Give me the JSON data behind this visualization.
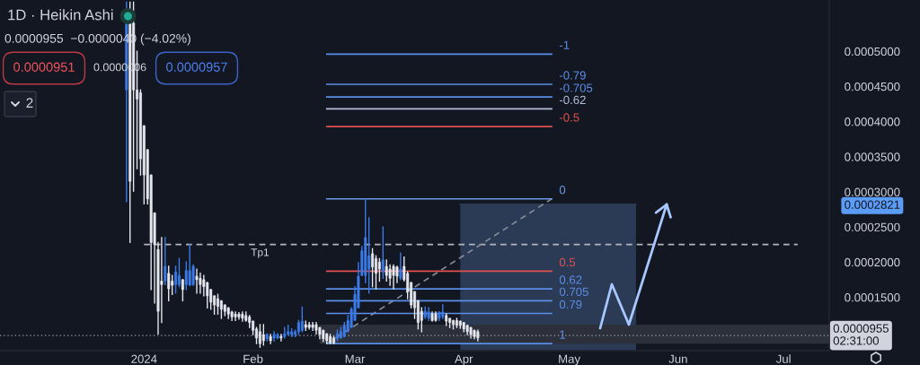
{
  "chart_data": {
    "type": "candlestick",
    "title": "1D · Heikin Ashi",
    "subtitle": "0.0000955  −0.0000040 (−4.02%)",
    "x": [
      "2023-12-27",
      "2023-12-28",
      "2023-12-29",
      "2023-12-30",
      "2023-12-31",
      "2024-01-01",
      "2024-01-02",
      "2024-01-03",
      "2024-01-04",
      "2024-01-05",
      "2024-01-06",
      "2024-01-07",
      "2024-01-08",
      "2024-01-09",
      "2024-01-10",
      "2024-01-11",
      "2024-01-12",
      "2024-01-13",
      "2024-01-14",
      "2024-01-15",
      "2024-01-16",
      "2024-01-17",
      "2024-01-18",
      "2024-01-19",
      "2024-01-20",
      "2024-01-21",
      "2024-01-22",
      "2024-01-23",
      "2024-01-24",
      "2024-01-25",
      "2024-01-26",
      "2024-01-27",
      "2024-01-28",
      "2024-01-29",
      "2024-01-30",
      "2024-01-31",
      "2024-02-01",
      "2024-02-02",
      "2024-02-03",
      "2024-02-04",
      "2024-02-05",
      "2024-02-06",
      "2024-02-07",
      "2024-02-08",
      "2024-02-09",
      "2024-02-10",
      "2024-02-11",
      "2024-02-12",
      "2024-02-13",
      "2024-02-14",
      "2024-02-15",
      "2024-02-16",
      "2024-02-17",
      "2024-02-18",
      "2024-02-19",
      "2024-02-20",
      "2024-02-21",
      "2024-02-22",
      "2024-02-23",
      "2024-02-24",
      "2024-02-25",
      "2024-02-26",
      "2024-02-27",
      "2024-02-28",
      "2024-02-29",
      "2024-03-01",
      "2024-03-02",
      "2024-03-03",
      "2024-03-04",
      "2024-03-05",
      "2024-03-06",
      "2024-03-07",
      "2024-03-08",
      "2024-03-09",
      "2024-03-10",
      "2024-03-11",
      "2024-03-12",
      "2024-03-13",
      "2024-03-14",
      "2024-03-15",
      "2024-03-16",
      "2024-03-17",
      "2024-03-18",
      "2024-03-19",
      "2024-03-20",
      "2024-03-21",
      "2024-03-22",
      "2024-03-23",
      "2024-03-24",
      "2024-03-25",
      "2024-03-26",
      "2024-03-27",
      "2024-03-28",
      "2024-03-29",
      "2024-03-30",
      "2024-03-31",
      "2024-04-01",
      "2024-04-02",
      "2024-04-03",
      "2024-04-04",
      "2024-04-05"
    ],
    "ohlc": [
      [
        0.000445,
        0.00057,
        0.000286,
        0.00056
      ],
      [
        0.00056,
        0.00057,
        0.000228,
        0.000315
      ],
      [
        0.00054,
        0.00057,
        0.000301,
        0.000445
      ],
      [
        0.000445,
        0.0005,
        0.000333,
        0.000432
      ],
      [
        0.000441,
        0.000445,
        0.000324,
        0.000347
      ],
      [
        0.000394,
        0.000394,
        0.000283,
        0.000324
      ],
      [
        0.00036,
        0.00036,
        0.000283,
        0.00029
      ],
      [
        0.000324,
        0.000324,
        0.000161,
        0.000228
      ],
      [
        0.00027,
        0.00027,
        0.000142,
        0.000225
      ],
      [
        0.000218,
        0.000228,
        9.8e-05,
        0.00013
      ],
      [
        0.000173,
        0.000235,
        0.000114,
        0.000168
      ],
      [
        0.000173,
        0.000235,
        0.000168,
        0.000194
      ],
      [
        0.000184,
        0.000194,
        0.000145,
        0.000162
      ],
      [
        0.000173,
        0.000181,
        0.000154,
        0.000167
      ],
      [
        0.000168,
        0.000194,
        0.000156,
        0.000186
      ],
      [
        0.000168,
        0.000205,
        0.000165,
        0.000181
      ],
      [
        0.000175,
        0.000175,
        0.000145,
        0.000161
      ],
      [
        0.000168,
        0.0002,
        0.000161,
        0.000188
      ],
      [
        0.000167,
        0.000225,
        0.000167,
        0.000188
      ],
      [
        0.000168,
        0.000196,
        0.000167,
        0.000194
      ],
      [
        0.00018,
        0.00019,
        0.000156,
        0.000175
      ],
      [
        0.000177,
        0.000184,
        0.000156,
        0.000168
      ],
      [
        0.000175,
        0.000181,
        0.000152,
        0.000165
      ],
      [
        0.000171,
        0.000171,
        0.000135,
        0.000152
      ],
      [
        0.000161,
        0.000161,
        0.000133,
        0.000143
      ],
      [
        0.000152,
        0.000152,
        0.000126,
        0.000139
      ],
      [
        0.000148,
        0.000154,
        0.000126,
        0.000137
      ],
      [
        0.000145,
        0.000145,
        0.00012,
        0.000133
      ],
      [
        0.000139,
        0.000139,
        0.000124,
        0.00013
      ],
      [
        0.000135,
        0.000135,
        0.00012,
        0.000126
      ],
      [
        0.000129,
        0.00013,
        0.000117,
        0.000122
      ],
      [
        0.000126,
        0.000129,
        0.000117,
        0.000122
      ],
      [
        0.000126,
        0.000128,
        0.000119,
        0.000122
      ],
      [
        0.000126,
        0.000129,
        0.000116,
        0.00012
      ],
      [
        0.000124,
        0.000129,
        0.000116,
        0.000117
      ],
      [
        0.000122,
        0.000124,
        0.000107,
        0.000114
      ],
      [
        0.000116,
        0.000116,
        9.7e-05,
        0.000103
      ],
      [
        0.000105,
        0.000107,
        8.4e-05,
        9.2e-05
      ],
      [
        0.000101,
        0.000111,
        7.9e-05,
        8.4e-05
      ],
      [
        9.7e-05,
        0.000111,
        8.2e-05,
        8.8e-05
      ],
      [
        9.1e-05,
        9.8e-05,
        8.8e-05,
        9.7e-05
      ],
      [
        9.4e-05,
        9.7e-05,
        8.4e-05,
        8.8e-05
      ],
      [
        9.2e-05,
        0.000101,
        8.8e-05,
        9.7e-05
      ],
      [
        9.2e-05,
        9.8e-05,
        9.1e-05,
        9.7e-05
      ],
      [
        9.4e-05,
        9.7e-05,
        8.8e-05,
        9.2e-05
      ],
      [
        9.4e-05,
        0.000107,
        9.2e-05,
        9.8e-05
      ],
      [
        9.7e-05,
        0.00011,
        9.7e-05,
        0.000101
      ],
      [
        9.7e-05,
        0.000105,
        9.4e-05,
        0.000101
      ],
      [
        9.7e-05,
        0.000103,
        9.4e-05,
        0.000101
      ],
      [
        0.000101,
        0.000117,
        9.7e-05,
        0.000114
      ],
      [
        0.000103,
        0.000136,
        0.000101,
        0.000116
      ],
      [
        0.000111,
        0.000116,
        0.000103,
        0.000107
      ],
      [
        0.000111,
        0.000114,
        0.000105,
        0.000107
      ],
      [
        0.000111,
        0.000114,
        0.000103,
        0.000107
      ],
      [
        0.000111,
        0.000114,
        9.8e-05,
        0.000103
      ],
      [
        0.000107,
        0.000107,
        9.1e-05,
        9.7e-05
      ],
      [
        0.000103,
        0.000103,
        8.7e-05,
        9.1e-05
      ],
      [
        9.8e-05,
        9.8e-05,
        8.4e-05,
        8.8e-05
      ],
      [
        9.4e-05,
        9.7e-05,
        8.4e-05,
        8.5e-05
      ],
      [
        9.2e-05,
        9.4e-05,
        8.4e-05,
        8.5e-05
      ],
      [
        9.1e-05,
        0.000103,
        8.8e-05,
        9.8e-05
      ],
      [
        9.2e-05,
        0.000107,
        9.2e-05,
        0.000101
      ],
      [
        9.4e-05,
        0.000114,
        9.4e-05,
        0.00011
      ],
      [
        0.000101,
        0.000124,
        0.000101,
        0.000117
      ],
      [
        0.000107,
        0.000135,
        0.000107,
        0.000133
      ],
      [
        0.000117,
        0.000165,
        0.000117,
        0.000154
      ],
      [
        0.000135,
        0.000199,
        0.000135,
        0.00018
      ],
      [
        0.000181,
        0.000222,
        0.000181,
        0.000216
      ],
      [
        0.000181,
        0.00029,
        0.000171,
        0.000235
      ],
      [
        0.00019,
        0.000263,
        0.000156,
        0.000209
      ],
      [
        0.000212,
        0.000219,
        0.000165,
        0.000193
      ],
      [
        0.000205,
        0.000209,
        0.000162,
        0.000184
      ],
      [
        0.0002,
        0.000205,
        0.000173,
        0.00019
      ],
      [
        0.000186,
        0.00025,
        0.000177,
        0.000203
      ],
      [
        0.000194,
        0.000203,
        0.000173,
        0.000181
      ],
      [
        0.00019,
        0.000196,
        0.000167,
        0.000177
      ],
      [
        0.000194,
        0.000196,
        0.000162,
        0.000181
      ],
      [
        0.000193,
        0.000194,
        0.000171,
        0.00018
      ],
      [
        0.000177,
        0.000213,
        0.000175,
        0.00019
      ],
      [
        0.000194,
        0.000207,
        0.000173,
        0.000175
      ],
      [
        0.000184,
        0.000186,
        0.000148,
        0.000158
      ],
      [
        0.000171,
        0.000171,
        0.000135,
        0.000139
      ],
      [
        0.000158,
        0.000158,
        0.00012,
        0.000135
      ],
      [
        0.000145,
        0.000145,
        0.000105,
        0.000114
      ],
      [
        0.00013,
        0.000135,
        0.000101,
        0.000117
      ],
      [
        0.000122,
        0.000136,
        0.00012,
        0.00013
      ],
      [
        0.00012,
        0.000135,
        0.000117,
        0.000129
      ],
      [
        0.000126,
        0.000129,
        0.000116,
        0.000117
      ],
      [
        0.000126,
        0.000129,
        0.000116,
        0.000117
      ],
      [
        0.00012,
        0.000129,
        0.000117,
        0.000129
      ],
      [
        0.000122,
        0.000139,
        0.00012,
        0.000129
      ],
      [
        0.000124,
        0.000126,
        0.00011,
        0.000116
      ],
      [
        0.00012,
        0.00012,
        0.000107,
        0.000114
      ],
      [
        0.000117,
        0.000117,
        0.000105,
        0.000111
      ],
      [
        0.000117,
        0.00012,
        0.000107,
        0.00011
      ],
      [
        0.000116,
        0.000116,
        0.000106,
        0.00011
      ],
      [
        0.000114,
        0.000114,
        0.000101,
        0.000105
      ],
      [
        0.00011,
        0.00011,
        9.7e-05,
        0.000101
      ],
      [
        0.000107,
        0.000107,
        9.2e-05,
        9.7e-05
      ],
      [
        0.000103,
        0.000103,
        9.1e-05,
        9.4e-05
      ],
      [
        0.000101,
        0.000103,
        8.8e-05,
        9.2e-05
      ]
    ],
    "colors": [
      "#3b7be8",
      "#e6e8ee",
      "#e6e8ee",
      "#e6e8ee",
      "#e6e8ee",
      "#e6e8ee",
      "#e6e8ee",
      "#e6e8ee",
      "#e6e8ee",
      "#e6e8ee",
      "#e6e8ee",
      "#3b7be8",
      "#e6e8ee",
      "#e6e8ee",
      "#3b7be8",
      "#3b7be8",
      "#e6e8ee",
      "#3b7be8",
      "#3b7be8",
      "#3b7be8",
      "#e6e8ee",
      "#e6e8ee",
      "#e6e8ee",
      "#e6e8ee",
      "#e6e8ee",
      "#e6e8ee",
      "#e6e8ee",
      "#e6e8ee",
      "#e6e8ee",
      "#e6e8ee",
      "#e6e8ee",
      "#e6e8ee",
      "#e6e8ee",
      "#e6e8ee",
      "#e6e8ee",
      "#e6e8ee",
      "#e6e8ee",
      "#e6e8ee",
      "#e6e8ee",
      "#e6e8ee",
      "#3b7be8",
      "#e6e8ee",
      "#3b7be8",
      "#3b7be8",
      "#e6e8ee",
      "#3b7be8",
      "#3b7be8",
      "#3b7be8",
      "#3b7be8",
      "#3b7be8",
      "#3b7be8",
      "#e6e8ee",
      "#e6e8ee",
      "#e6e8ee",
      "#e6e8ee",
      "#e6e8ee",
      "#e6e8ee",
      "#e6e8ee",
      "#e6e8ee",
      "#e6e8ee",
      "#3b7be8",
      "#3b7be8",
      "#3b7be8",
      "#3b7be8",
      "#3b7be8",
      "#3b7be8",
      "#3b7be8",
      "#3b7be8",
      "#3b7be8",
      "#3b7be8",
      "#e6e8ee",
      "#e6e8ee",
      "#e6e8ee",
      "#3b7be8",
      "#e6e8ee",
      "#e6e8ee",
      "#e6e8ee",
      "#e6e8ee",
      "#3b7be8",
      "#e6e8ee",
      "#e6e8ee",
      "#e6e8ee",
      "#e6e8ee",
      "#e6e8ee",
      "#e6e8ee",
      "#3b7be8",
      "#3b7be8",
      "#e6e8ee",
      "#e6e8ee",
      "#3b7be8",
      "#3b7be8",
      "#e6e8ee",
      "#e6e8ee",
      "#e6e8ee",
      "#e6e8ee",
      "#e6e8ee",
      "#e6e8ee",
      "#e6e8ee",
      "#e6e8ee",
      "#e6e8ee",
      "#e6e8ee"
    ],
    "series": [
      {
        "type": "line",
        "x": [
          "2024-03-31",
          "2024-05-20"
        ],
        "values": [
          0.0002821,
          0.0002821
        ],
        "lower": [
          7.5e-05,
          7.5e-05
        ],
        "upper": [
          0.0002821,
          0.0002821
        ],
        "color": "#2b3a55"
      },
      {
        "type": "line",
        "x": [
          "2024-02-20",
          "2024-07-14"
        ],
        "values": [
          0.00011,
          0.00011
        ],
        "lower": [
          8.4e-05,
          8.4e-05
        ],
        "upper": [
          0.00011,
          0.00011
        ],
        "color": "#2c303b"
      },
      {
        "type": "line",
        "x": [
          "2024-01-01",
          "2024-07-05"
        ],
        "values": [
          0.000225,
          0.000225
        ],
        "color": "#b2b5be",
        "line_style": "dashed"
      },
      {
        "type": "line",
        "x": [
          "2024-02-22",
          "2024-04-26"
        ],
        "values": [
          8.4e-05,
          0.00029
        ],
        "color": "#868b97",
        "line_style": "dashed"
      },
      {
        "type": "line",
        "name": "-1",
        "x": [
          "2024-02-22",
          "2024-04-26"
        ],
        "values": [
          0.000496,
          0.000496
        ],
        "color": "#5b8ee6"
      },
      {
        "type": "line",
        "name": "-0.79",
        "x": [
          "2024-02-22",
          "2024-04-26"
        ],
        "values": [
          0.000453,
          0.000453
        ],
        "color": "#5b8ee6"
      },
      {
        "type": "line",
        "name": "-0.705",
        "x": [
          "2024-02-22",
          "2024-04-26"
        ],
        "values": [
          0.000435,
          0.000435
        ],
        "color": "#5b8ee6"
      },
      {
        "type": "line",
        "name": "-0.62",
        "x": [
          "2024-02-22",
          "2024-04-26"
        ],
        "values": [
          0.000418,
          0.000418
        ],
        "color": "#b4bddb"
      },
      {
        "type": "line",
        "name": "-0.5",
        "x": [
          "2024-02-22",
          "2024-04-26"
        ],
        "values": [
          0.000393,
          0.000393
        ],
        "color": "#e0514f"
      },
      {
        "type": "line",
        "name": "0",
        "x": [
          "2024-02-22",
          "2024-04-26"
        ],
        "values": [
          0.00029,
          0.00029
        ],
        "color": "#6b9be8"
      },
      {
        "type": "line",
        "name": "0.5",
        "x": [
          "2024-02-22",
          "2024-04-26"
        ],
        "values": [
          0.000187,
          0.000187
        ],
        "color": "#e0514f"
      },
      {
        "type": "line",
        "name": "0.62",
        "x": [
          "2024-02-22",
          "2024-04-26"
        ],
        "values": [
          0.000162,
          0.000162
        ],
        "color": "#5b8ee6"
      },
      {
        "type": "line",
        "name": "0.705",
        "x": [
          "2024-02-22",
          "2024-04-26"
        ],
        "values": [
          0.000145,
          0.000145
        ],
        "color": "#5b8ee6"
      },
      {
        "type": "line",
        "name": "0.79",
        "x": [
          "2024-02-22",
          "2024-04-26"
        ],
        "values": [
          0.000127,
          0.000127
        ],
        "color": "#5b8ee6"
      },
      {
        "type": "line",
        "name": "1",
        "x": [
          "2024-02-22",
          "2024-04-26"
        ],
        "values": [
          8.4e-05,
          8.4e-05
        ],
        "color": "#5b8ee6"
      }
    ],
    "ref_lines": [
      {
        "axis": "y",
        "value": 9.55e-05,
        "label": "0.0000955\n02:31:00",
        "color": "#9598a1",
        "line_style": "dotted"
      }
    ],
    "annotations": [
      "0.0000951",
      "0.0000006",
      "0.0000957",
      "2",
      {
        "text": "Tp1",
        "x": "2024-02-03",
        "y": 0.000225
      }
    ],
    "xlim": [
      "2023-11-21",
      "2024-07-14"
    ],
    "xticks": [
      {
        "value": "2024-01-01",
        "label": "2024"
      },
      {
        "value": "2024-02-01",
        "label": "Feb"
      },
      {
        "value": "2024-03-01",
        "label": "Mar"
      },
      {
        "value": "2024-04-01",
        "label": "Apr"
      },
      {
        "value": "2024-05-01",
        "label": "May"
      },
      {
        "value": "2024-06-01",
        "label": "Jun"
      },
      {
        "value": "2024-07-01",
        "label": "Jul"
      }
    ],
    "ylim": [
      7.4e-05,
      0.000573
    ],
    "yticks": [
      {
        "value": 0.00015,
        "label": "0.0001500"
      },
      {
        "value": 0.0002,
        "label": "0.0002000"
      },
      {
        "value": 0.00025,
        "label": "0.0002500"
      },
      {
        "value": 0.0002821,
        "label": "0.0002821"
      },
      {
        "value": 0.0003,
        "label": "0.0003000"
      },
      {
        "value": 0.00035,
        "label": "0.0003500"
      },
      {
        "value": 0.0004,
        "label": "0.0004000"
      },
      {
        "value": 0.00045,
        "label": "0.0004500"
      },
      {
        "value": 0.0005,
        "label": "0.0005000"
      }
    ]
  }
}
